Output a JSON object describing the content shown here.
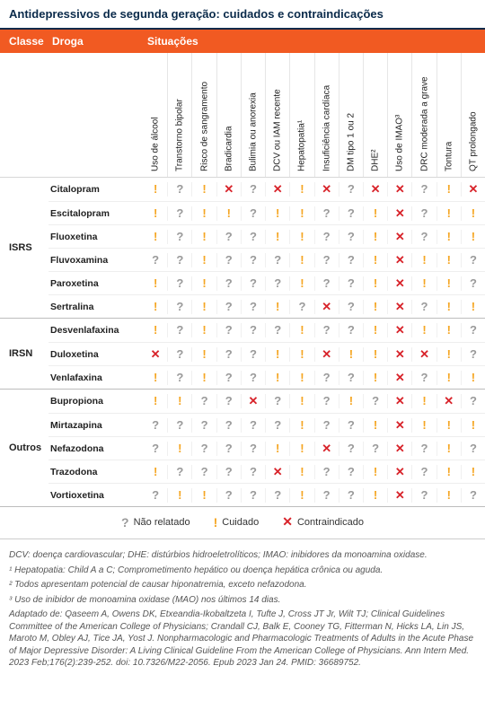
{
  "colors": {
    "title_text": "#0a2a4a",
    "header_bg": "#f15a22",
    "header_text": "#ffffff",
    "sym_unknown": "#9a9a9a",
    "sym_caution": "#f5a623",
    "sym_contra": "#d8232a",
    "border": "#d8d8d8"
  },
  "title": "Antidepressivos de segunda geração: cuidados e contraindicações",
  "headers": {
    "classe": "Classe",
    "droga": "Droga",
    "situacoes": "Situações"
  },
  "situations": [
    "Uso de álcool",
    "Transtorno bipolar",
    "Risco de sangramento",
    "Bradicardia",
    "Bulimia ou anorexia",
    "DCV ou IAM recente",
    "Hepatopatia¹",
    "Insuficiência cardíaca",
    "DM tipo 1 ou 2",
    "DHE²",
    "Uso de IMAO³",
    "DRC moderada a grave",
    "Tontura",
    "QT prolongado"
  ],
  "symbols": {
    "q": "?",
    "c": "!",
    "x": "✕"
  },
  "groups": [
    {
      "label": "ISRS",
      "drugs": [
        {
          "name": "Citalopram",
          "v": [
            "c",
            "q",
            "c",
            "x",
            "q",
            "x",
            "c",
            "x",
            "q",
            "x",
            "x",
            "q",
            "c",
            "x"
          ]
        },
        {
          "name": "Escitalopram",
          "v": [
            "c",
            "q",
            "c",
            "c",
            "q",
            "c",
            "c",
            "q",
            "q",
            "c",
            "x",
            "q",
            "c",
            "c"
          ]
        },
        {
          "name": "Fluoxetina",
          "v": [
            "c",
            "q",
            "c",
            "q",
            "q",
            "c",
            "c",
            "q",
            "q",
            "c",
            "x",
            "q",
            "c",
            "c"
          ]
        },
        {
          "name": "Fluvoxamina",
          "v": [
            "q",
            "q",
            "c",
            "q",
            "q",
            "q",
            "c",
            "q",
            "q",
            "c",
            "x",
            "c",
            "c",
            "q"
          ]
        },
        {
          "name": "Paroxetina",
          "v": [
            "c",
            "q",
            "c",
            "q",
            "q",
            "q",
            "c",
            "q",
            "q",
            "c",
            "x",
            "c",
            "c",
            "q"
          ]
        },
        {
          "name": "Sertralina",
          "v": [
            "c",
            "q",
            "c",
            "q",
            "q",
            "c",
            "q",
            "x",
            "q",
            "c",
            "x",
            "q",
            "c",
            "c"
          ]
        }
      ]
    },
    {
      "label": "IRSN",
      "drugs": [
        {
          "name": "Desvenlafaxina",
          "v": [
            "c",
            "q",
            "c",
            "q",
            "q",
            "q",
            "c",
            "q",
            "q",
            "c",
            "x",
            "c",
            "c",
            "q"
          ]
        },
        {
          "name": "Duloxetina",
          "v": [
            "x",
            "q",
            "c",
            "q",
            "q",
            "c",
            "c",
            "x",
            "c",
            "c",
            "x",
            "x",
            "c",
            "q"
          ]
        },
        {
          "name": "Venlafaxina",
          "v": [
            "c",
            "q",
            "c",
            "q",
            "q",
            "c",
            "c",
            "q",
            "q",
            "c",
            "x",
            "q",
            "c",
            "c"
          ]
        }
      ]
    },
    {
      "label": "Outros",
      "drugs": [
        {
          "name": "Bupropiona",
          "v": [
            "c",
            "c",
            "q",
            "q",
            "x",
            "q",
            "c",
            "q",
            "c",
            "q",
            "x",
            "c",
            "x",
            "q"
          ]
        },
        {
          "name": "Mirtazapina",
          "v": [
            "q",
            "q",
            "q",
            "q",
            "q",
            "q",
            "c",
            "q",
            "q",
            "c",
            "x",
            "c",
            "c",
            "c"
          ]
        },
        {
          "name": "Nefazodona",
          "v": [
            "q",
            "c",
            "q",
            "q",
            "q",
            "c",
            "c",
            "x",
            "q",
            "q",
            "x",
            "q",
            "c",
            "q"
          ]
        },
        {
          "name": "Trazodona",
          "v": [
            "c",
            "q",
            "q",
            "q",
            "q",
            "x",
            "c",
            "q",
            "q",
            "c",
            "x",
            "q",
            "c",
            "c"
          ]
        },
        {
          "name": "Vortioxetina",
          "v": [
            "q",
            "c",
            "c",
            "q",
            "q",
            "q",
            "c",
            "q",
            "q",
            "c",
            "x",
            "q",
            "c",
            "q"
          ]
        }
      ]
    }
  ],
  "legend": [
    {
      "sym": "q",
      "label": "Não relatado"
    },
    {
      "sym": "c",
      "label": "Cuidado"
    },
    {
      "sym": "x",
      "label": "Contraindicado"
    }
  ],
  "footer": [
    "DCV: doença cardiovascular; DHE: distúrbios hidroeletrolíticos; IMAO: inibidores da monoamina oxidase.",
    "¹ Hepatopatia: Child A a C; Comprometimento hepático ou doença hepática crônica ou aguda.",
    "² Todos apresentam potencial de causar hiponatremia, exceto nefazodona.",
    "³ Uso de inibidor de monoamina oxidase (MAO) nos últimos 14 dias.",
    "Adaptado de: Qaseem A, Owens DK, Etxeandia-Ikobaltzeta I, Tufte J, Cross JT Jr, Wilt TJ; Clinical Guidelines Committee of the American College of Physicians; Crandall CJ, Balk E, Cooney TG, Fitterman N, Hicks LA, Lin JS, Maroto M, Obley AJ, Tice JA, Yost J. Nonpharmacologic and Pharmacologic Treatments of Adults in the Acute Phase of Major Depressive Disorder: A Living Clinical Guideline From the American College of Physicians. Ann Intern Med. 2023 Feb;176(2):239-252. doi: 10.7326/M22-2056. Epub 2023 Jan 24. PMID: 36689752."
  ]
}
